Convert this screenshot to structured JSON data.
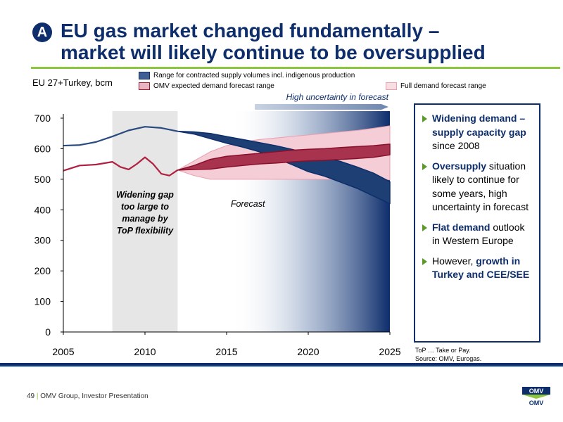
{
  "slide": {
    "badge": "A",
    "title_line1": "EU gas market changed fundamentally –",
    "title_line2": "market will likely continue to be oversupplied",
    "unit_label": "EU 27+Turkey, bcm",
    "legend": {
      "supply": "Range for contracted supply volumes incl. indigenous production",
      "omv": "OMV expected demand forecast range",
      "full": "Full demand forecast range"
    },
    "uncertainty_label": "High uncertainty in forecast",
    "footnote_line1": "ToP … Take or Pay.",
    "footnote_line2": "Source: OMV, Eurogas.",
    "footer_num": "49",
    "footer_text": "OMV Group, Investor Presentation",
    "logo_text": "OMV"
  },
  "bullets": [
    {
      "pre": "",
      "hl": "Widening demand – supply capacity gap",
      "post": " since 2008"
    },
    {
      "pre": "",
      "hl": "Oversupply",
      "post": " situation likely to continue for some years, high uncertainty in forecast"
    },
    {
      "pre": "",
      "hl": "Flat demand",
      "post": " outlook in Western Europe"
    },
    {
      "pre": "However, ",
      "hl": "growth in Turkey and CEE/SEE",
      "post": ""
    }
  ],
  "colors": {
    "navy": "#0d2d6b",
    "green": "#8cc63f",
    "supply_fill": "#1e3f73",
    "omv_fill": "#a8334f",
    "full_fill": "#f4cdd6",
    "shade": "#e6e6e6"
  },
  "chart_data": {
    "type": "line",
    "xlim": [
      2005,
      2025
    ],
    "ylim": [
      0,
      700
    ],
    "x_ticks": [
      2005,
      2010,
      2015,
      2020,
      2025
    ],
    "y_ticks": [
      0,
      100,
      200,
      300,
      400,
      500,
      600,
      700
    ],
    "shaded_period": [
      2008,
      2012
    ],
    "forecast_start": 2012,
    "annotations": [
      {
        "text": [
          "Widening gap",
          "too large to",
          "manage by",
          "ToP flexibility"
        ],
        "x": 2010,
        "y": 440
      },
      {
        "text": [
          "Forecast"
        ],
        "x": 2016.3,
        "y": 410
      }
    ],
    "historical": {
      "supply": {
        "x": [
          2005,
          2006,
          2007,
          2008,
          2009,
          2010,
          2011,
          2012
        ],
        "y": [
          610,
          612,
          622,
          640,
          660,
          672,
          668,
          657
        ]
      },
      "demand": {
        "x": [
          2005,
          2006,
          2007,
          2008,
          2008.5,
          2009,
          2009.5,
          2010,
          2010.5,
          2011,
          2011.5,
          2012
        ],
        "y": [
          528,
          545,
          548,
          557,
          540,
          532,
          550,
          572,
          550,
          518,
          512,
          530
        ]
      }
    },
    "series": [
      {
        "name": "Range for contracted supply volumes incl. indigenous production",
        "x": [
          2012,
          2013,
          2014,
          2015,
          2016,
          2017,
          2018,
          2019,
          2020,
          2021,
          2022,
          2023,
          2024,
          2025
        ],
        "upper": [
          657,
          655,
          650,
          640,
          630,
          620,
          610,
          598,
          585,
          572,
          558,
          540,
          520,
          492
        ],
        "lower": [
          657,
          648,
          633,
          618,
          605,
          590,
          570,
          548,
          525,
          510,
          490,
          470,
          445,
          420
        ]
      },
      {
        "name": "OMV expected demand forecast range",
        "x": [
          2012,
          2013,
          2014,
          2015,
          2016,
          2017,
          2018,
          2019,
          2020,
          2021,
          2022,
          2023,
          2024,
          2025
        ],
        "upper": [
          530,
          545,
          565,
          575,
          580,
          585,
          590,
          595,
          598,
          600,
          604,
          607,
          610,
          615
        ],
        "lower": [
          530,
          532,
          533,
          540,
          545,
          550,
          553,
          557,
          560,
          562,
          565,
          568,
          572,
          580
        ]
      },
      {
        "name": "Full demand forecast range",
        "x": [
          2012,
          2013,
          2014,
          2015,
          2016,
          2017,
          2018,
          2019,
          2020,
          2021,
          2022,
          2023,
          2024,
          2025
        ],
        "upper": [
          530,
          560,
          590,
          610,
          622,
          630,
          635,
          640,
          645,
          650,
          655,
          660,
          667,
          675
        ],
        "lower": [
          530,
          512,
          500,
          500,
          500,
          500,
          500,
          500,
          500,
          500,
          500,
          500,
          500,
          498
        ]
      }
    ]
  }
}
